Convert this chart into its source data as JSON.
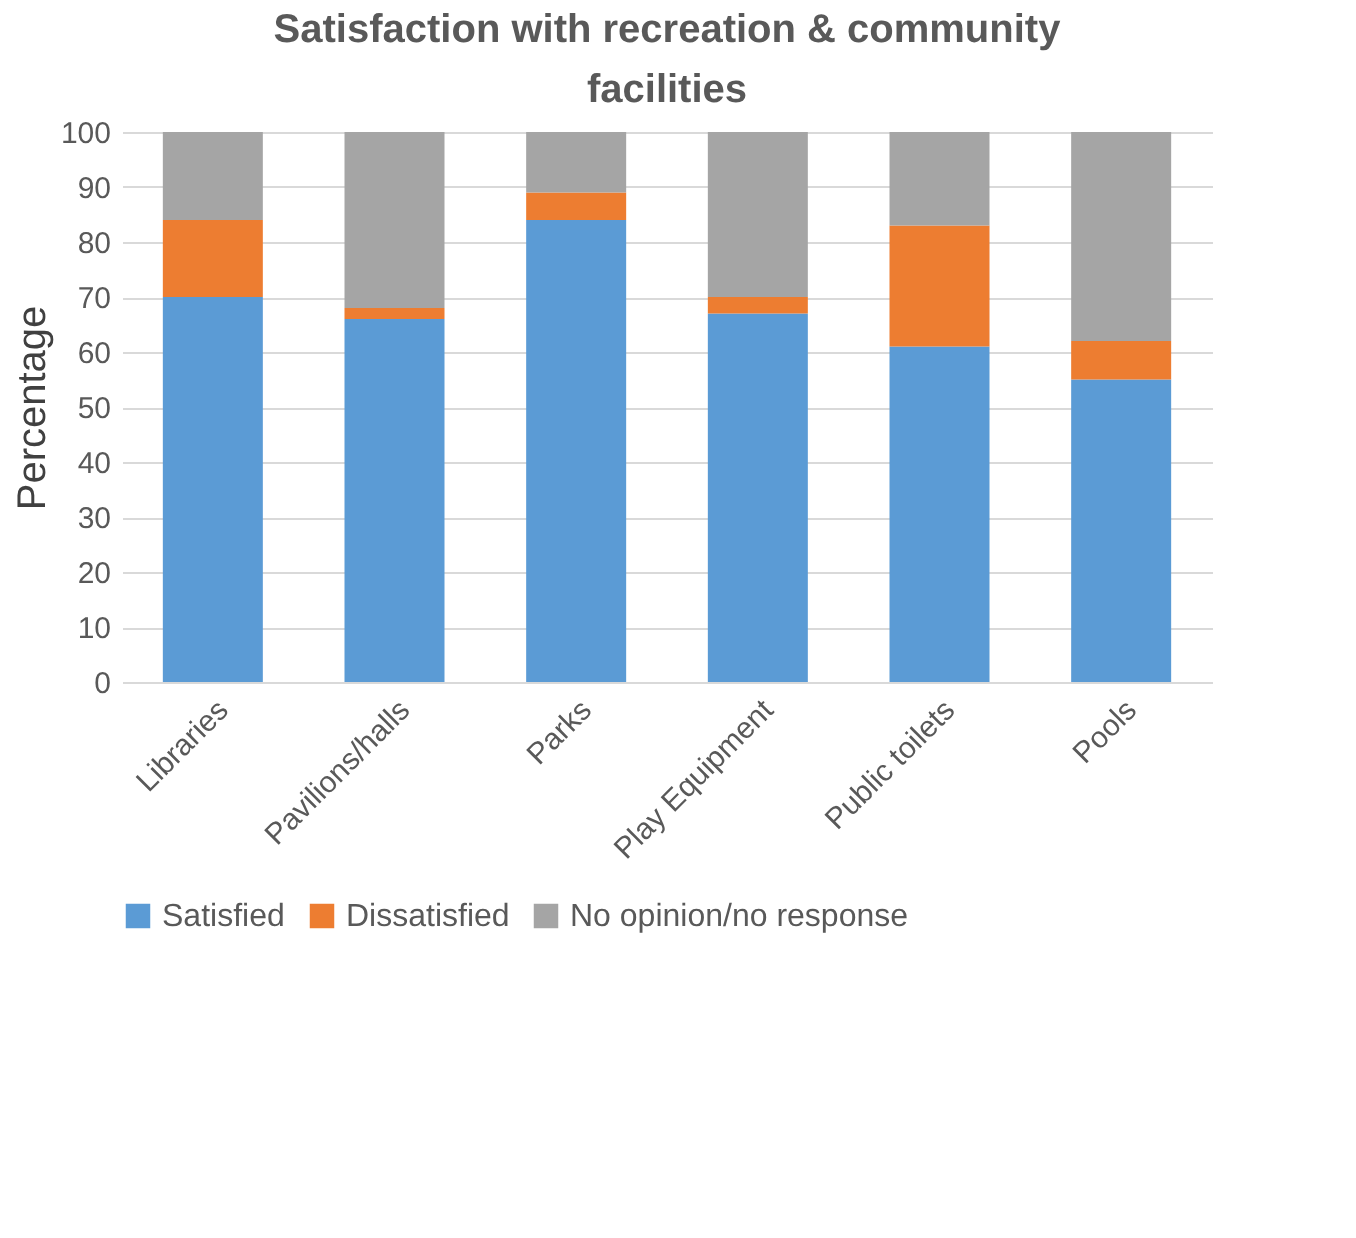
{
  "chart_data": {
    "type": "bar",
    "stacked": true,
    "title": "Satisfaction with recreation & community facilities",
    "ylabel": "Percentage",
    "categories": [
      "Libraries",
      "Pavilions/halls",
      "Parks",
      "Play Equipment",
      "Public toilets",
      "Pools"
    ],
    "series": [
      {
        "name": "Satisfied",
        "color": "#5b9bd5",
        "values": [
          70,
          66,
          84,
          67,
          61,
          55
        ]
      },
      {
        "name": "Dissatisfied",
        "color": "#ed7d31",
        "values": [
          14,
          2,
          5,
          3,
          22,
          7
        ]
      },
      {
        "name": "No opinion/no response",
        "color": "#a5a5a5",
        "values": [
          16,
          32,
          11,
          30,
          17,
          38
        ]
      }
    ],
    "ylim": [
      0,
      100
    ],
    "yticks": [
      0,
      10,
      20,
      30,
      40,
      50,
      60,
      70,
      80,
      90,
      100
    ],
    "grid": "y",
    "legend": "bottom"
  }
}
